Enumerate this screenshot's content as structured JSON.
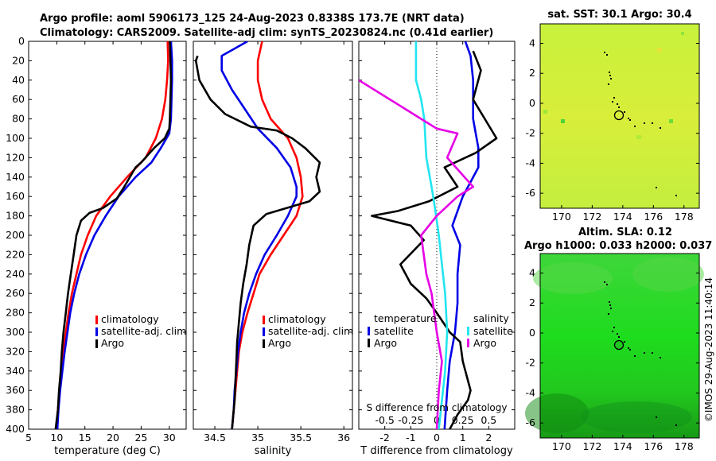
{
  "header": {
    "line1": "Argo profile: aoml 5906173_125 24-Aug-2023 0.8338S 173.7E (NRT data)",
    "line2": "Climatology: CARS2009. Satellite-adj clim: synTS_20230824.nc (0.41d earlier)"
  },
  "colors": {
    "climatology": "#ff0000",
    "satellite": "#0000e6",
    "argo": "#000000",
    "sat_salinity": "#22e5f0",
    "argo_salinity": "#e600e6"
  },
  "depth_axis": {
    "ticks": [
      0,
      20,
      40,
      60,
      80,
      100,
      120,
      140,
      160,
      180,
      200,
      220,
      240,
      260,
      280,
      300,
      320,
      340,
      360,
      380,
      400
    ],
    "range": [
      0,
      400
    ]
  },
  "chart_data": [
    {
      "type": "line",
      "id": "temperature",
      "xlabel": "temperature (deg C)",
      "ylabel": "depth",
      "xlim": [
        5,
        33
      ],
      "ylim": [
        0,
        400
      ],
      "xticks": [
        5,
        10,
        15,
        20,
        25,
        30
      ],
      "legend": [
        "climatology",
        "satellite-adj. clim",
        "Argo"
      ],
      "legend_position": "lower-right",
      "series": [
        {
          "name": "climatology",
          "color": "#ff0000",
          "points": [
            [
              29.7,
              0
            ],
            [
              29.8,
              20
            ],
            [
              29.6,
              40
            ],
            [
              29.3,
              60
            ],
            [
              28.7,
              80
            ],
            [
              27.6,
              100
            ],
            [
              25.8,
              120
            ],
            [
              22.5,
              140
            ],
            [
              19.5,
              160
            ],
            [
              17.0,
              180
            ],
            [
              15.5,
              200
            ],
            [
              14.3,
              220
            ],
            [
              13.5,
              240
            ],
            [
              12.7,
              260
            ],
            [
              12.1,
              280
            ],
            [
              11.6,
              300
            ],
            [
              11.2,
              320
            ],
            [
              10.8,
              340
            ],
            [
              10.5,
              360
            ],
            [
              10.2,
              380
            ],
            [
              10.0,
              400
            ]
          ]
        },
        {
          "name": "satellite-adj. clim",
          "color": "#0000e6",
          "points": [
            [
              30.3,
              0
            ],
            [
              30.5,
              20
            ],
            [
              30.5,
              40
            ],
            [
              30.4,
              60
            ],
            [
              30.3,
              80
            ],
            [
              30.0,
              95
            ],
            [
              28.5,
              110
            ],
            [
              26.8,
              125
            ],
            [
              24.0,
              140
            ],
            [
              21.0,
              160
            ],
            [
              18.7,
              180
            ],
            [
              16.7,
              200
            ],
            [
              15.2,
              220
            ],
            [
              14.0,
              240
            ],
            [
              13.1,
              260
            ],
            [
              12.4,
              280
            ],
            [
              11.9,
              300
            ],
            [
              11.4,
              320
            ],
            [
              11.0,
              340
            ],
            [
              10.6,
              360
            ],
            [
              10.3,
              380
            ],
            [
              10.1,
              400
            ]
          ]
        },
        {
          "name": "Argo",
          "color": "#000000",
          "points": [
            [
              30.1,
              0
            ],
            [
              30.2,
              20
            ],
            [
              30.3,
              40
            ],
            [
              30.2,
              60
            ],
            [
              30.1,
              80
            ],
            [
              30.0,
              90
            ],
            [
              29.2,
              100
            ],
            [
              27.3,
              110
            ],
            [
              25.0,
              125
            ],
            [
              24.0,
              130
            ],
            [
              22.0,
              150
            ],
            [
              20.7,
              162
            ],
            [
              18.2,
              172
            ],
            [
              15.8,
              177
            ],
            [
              14.3,
              185
            ],
            [
              13.5,
              200
            ],
            [
              13.0,
              220
            ],
            [
              12.5,
              240
            ],
            [
              12.0,
              260
            ],
            [
              11.6,
              280
            ],
            [
              11.2,
              300
            ],
            [
              10.9,
              320
            ],
            [
              10.7,
              340
            ],
            [
              10.4,
              360
            ],
            [
              10.2,
              380
            ],
            [
              9.8,
              400
            ]
          ]
        }
      ]
    },
    {
      "type": "line",
      "id": "salinity",
      "xlabel": "salinity",
      "ylabel": "depth",
      "xlim": [
        34.25,
        36.1
      ],
      "ylim": [
        0,
        400
      ],
      "xticks": [
        34.5,
        35,
        35.5,
        36
      ],
      "legend": [
        "climatology",
        "satellite-adj. clim",
        "Argo"
      ],
      "legend_position": "lower-right",
      "series": [
        {
          "name": "climatology",
          "color": "#ff0000",
          "points": [
            [
              35.05,
              0
            ],
            [
              35.0,
              20
            ],
            [
              35.0,
              40
            ],
            [
              35.05,
              60
            ],
            [
              35.15,
              80
            ],
            [
              35.35,
              100
            ],
            [
              35.45,
              120
            ],
            [
              35.5,
              140
            ],
            [
              35.52,
              160
            ],
            [
              35.45,
              180
            ],
            [
              35.3,
              200
            ],
            [
              35.15,
              220
            ],
            [
              35.02,
              240
            ],
            [
              34.95,
              260
            ],
            [
              34.88,
              280
            ],
            [
              34.82,
              300
            ],
            [
              34.78,
              320
            ],
            [
              34.76,
              340
            ],
            [
              34.74,
              360
            ],
            [
              34.72,
              380
            ],
            [
              34.7,
              400
            ]
          ]
        },
        {
          "name": "satellite-adj. clim",
          "color": "#0000e6",
          "points": [
            [
              34.88,
              0
            ],
            [
              34.58,
              15
            ],
            [
              34.58,
              30
            ],
            [
              34.7,
              50
            ],
            [
              34.85,
              70
            ],
            [
              35.0,
              90
            ],
            [
              35.22,
              110
            ],
            [
              35.38,
              130
            ],
            [
              35.45,
              150
            ],
            [
              35.45,
              160
            ],
            [
              35.35,
              180
            ],
            [
              35.22,
              200
            ],
            [
              35.08,
              220
            ],
            [
              34.98,
              240
            ],
            [
              34.9,
              260
            ],
            [
              34.84,
              280
            ],
            [
              34.8,
              300
            ],
            [
              34.77,
              320
            ],
            [
              34.75,
              340
            ],
            [
              34.73,
              360
            ],
            [
              34.72,
              380
            ],
            [
              34.7,
              400
            ]
          ]
        },
        {
          "name": "Argo",
          "color": "#000000",
          "points": [
            [
              34.3,
              15
            ],
            [
              34.28,
              20
            ],
            [
              34.32,
              40
            ],
            [
              34.45,
              60
            ],
            [
              34.62,
              75
            ],
            [
              34.92,
              88
            ],
            [
              35.22,
              92
            ],
            [
              35.4,
              100
            ],
            [
              35.55,
              110
            ],
            [
              35.72,
              125
            ],
            [
              35.68,
              140
            ],
            [
              35.72,
              155
            ],
            [
              35.6,
              165
            ],
            [
              35.1,
              178
            ],
            [
              34.95,
              190
            ],
            [
              34.9,
              210
            ],
            [
              34.87,
              230
            ],
            [
              34.83,
              250
            ],
            [
              34.8,
              270
            ],
            [
              34.78,
              290
            ],
            [
              34.76,
              310
            ],
            [
              34.75,
              330
            ],
            [
              34.74,
              350
            ],
            [
              34.73,
              370
            ],
            [
              34.71,
              390
            ],
            [
              34.7,
              400
            ]
          ]
        }
      ]
    },
    {
      "type": "line",
      "id": "differences",
      "xlabel": "T difference from climatology",
      "xlabel_top": "S difference from climatology",
      "xlim": [
        -3,
        3
      ],
      "xlim_salinity": [
        -0.75,
        0.75
      ],
      "ylim": [
        0,
        400
      ],
      "xticks": [
        -2,
        -1,
        0,
        1,
        2
      ],
      "xticks_salinity": [
        -0.5,
        -0.25,
        0,
        0.25,
        0.5
      ],
      "legend_temperature": {
        "title": "temperature",
        "entries": [
          "satellite",
          "Argo"
        ]
      },
      "legend_salinity": {
        "title": "salinity",
        "entries": [
          "satellite",
          "Argo"
        ]
      },
      "series": [
        {
          "name": "temperature satellite",
          "color": "#0000e6",
          "points": [
            [
              1.1,
              0
            ],
            [
              1.3,
              15
            ],
            [
              1.4,
              40
            ],
            [
              1.4,
              80
            ],
            [
              1.6,
              110
            ],
            [
              1.6,
              130
            ],
            [
              1.0,
              160
            ],
            [
              0.6,
              190
            ],
            [
              0.9,
              210
            ],
            [
              0.8,
              240
            ],
            [
              0.8,
              270
            ],
            [
              0.7,
              300
            ],
            [
              0.5,
              330
            ],
            [
              0.4,
              360
            ],
            [
              0.3,
              400
            ]
          ]
        },
        {
          "name": "temperature Argo",
          "color": "#000000",
          "points": [
            [
              1.4,
              10
            ],
            [
              1.7,
              30
            ],
            [
              1.4,
              60
            ],
            [
              2.3,
              100
            ],
            [
              1.5,
              115
            ],
            [
              0.3,
              130
            ],
            [
              0.8,
              150
            ],
            [
              -0.3,
              165
            ],
            [
              -1.5,
              175
            ],
            [
              -2.5,
              180
            ],
            [
              -1.0,
              190
            ],
            [
              -0.5,
              205
            ],
            [
              -1.4,
              230
            ],
            [
              -1.0,
              250
            ],
            [
              -0.4,
              265
            ],
            [
              0.0,
              280
            ],
            [
              0.5,
              300
            ],
            [
              0.9,
              310
            ],
            [
              1.0,
              330
            ],
            [
              1.3,
              360
            ],
            [
              1.2,
              370
            ],
            [
              0.8,
              385
            ],
            [
              0.5,
              400
            ]
          ]
        },
        {
          "name": "salinity satellite",
          "color": "#22e5f0",
          "points": [
            [
              -0.2,
              0
            ],
            [
              -0.2,
              40
            ],
            [
              -0.15,
              60
            ],
            [
              -0.12,
              80
            ],
            [
              -0.1,
              120
            ],
            [
              -0.05,
              150
            ],
            [
              -0.02,
              170
            ],
            [
              0.02,
              200
            ],
            [
              0.05,
              230
            ],
            [
              0.08,
              260
            ],
            [
              0.1,
              300
            ],
            [
              0.08,
              340
            ],
            [
              0.05,
              370
            ],
            [
              0.02,
              400
            ]
          ]
        },
        {
          "name": "salinity Argo",
          "color": "#e600e6",
          "points": [
            [
              -0.75,
              40
            ],
            [
              -0.3,
              70
            ],
            [
              -0.15,
              80
            ],
            [
              0.0,
              90
            ],
            [
              0.2,
              95
            ],
            [
              0.1,
              120
            ],
            [
              0.35,
              150
            ],
            [
              0.2,
              160
            ],
            [
              0.0,
              180
            ],
            [
              -0.15,
              200
            ],
            [
              -0.1,
              240
            ],
            [
              -0.05,
              260
            ],
            [
              0.0,
              300
            ],
            [
              0.05,
              330
            ],
            [
              0.02,
              360
            ],
            [
              0.0,
              400
            ]
          ]
        }
      ]
    }
  ],
  "map_sst": {
    "title": "sat. SST: 30.1 Argo: 30.4",
    "xticks": [
      170,
      172,
      174,
      176,
      178
    ],
    "yticks": [
      4,
      2,
      0,
      -2,
      -4,
      -6
    ]
  },
  "map_sla": {
    "title_line1": "Altim. SLA: 0.12",
    "title_line2": "Argo h1000: 0.033 h2000: 0.037",
    "xticks": [
      170,
      172,
      174,
      176,
      178
    ],
    "yticks": [
      4,
      2,
      0,
      -2,
      -4,
      -6
    ]
  },
  "credit": "©IMOS 29-Aug-2023 11:40:14"
}
